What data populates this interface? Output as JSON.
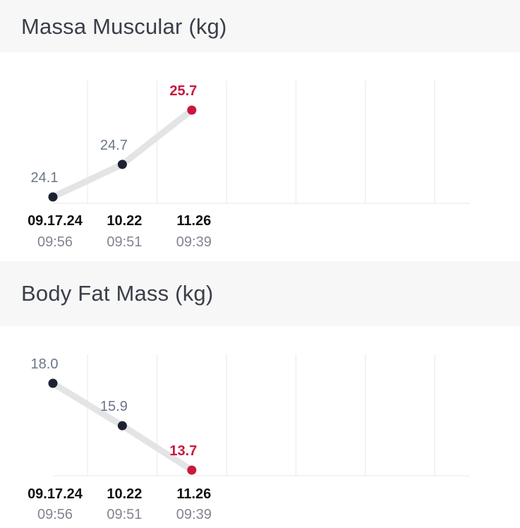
{
  "charts": [
    {
      "title": "Massa Muscular",
      "unit": "(kg)"
    },
    {
      "title": "Body Fat Mass",
      "unit": "(kg)"
    }
  ],
  "colors": {
    "point": "#1c2233",
    "latest": "#c8183c",
    "line": "#e3e4e6",
    "grid": "#eeeff1",
    "value_text": "#6b7688"
  },
  "chart_data": [
    {
      "type": "line",
      "title": "Massa Muscular (kg)",
      "x": [
        "09.17.24",
        "10.22",
        "11.26"
      ],
      "x_times": [
        "09:56",
        "09:51",
        "09:39"
      ],
      "series": [
        {
          "values": [
            24.1,
            24.7,
            25.7
          ]
        }
      ],
      "columns": 6,
      "grid": "vertical"
    },
    {
      "type": "line",
      "title": "Body Fat Mass (kg)",
      "x": [
        "09.17.24",
        "10.22",
        "11.26"
      ],
      "x_times": [
        "09:56",
        "09:51",
        "09:39"
      ],
      "series": [
        {
          "values": [
            18.0,
            15.9,
            13.7
          ]
        }
      ],
      "columns": 6,
      "grid": "vertical"
    }
  ]
}
